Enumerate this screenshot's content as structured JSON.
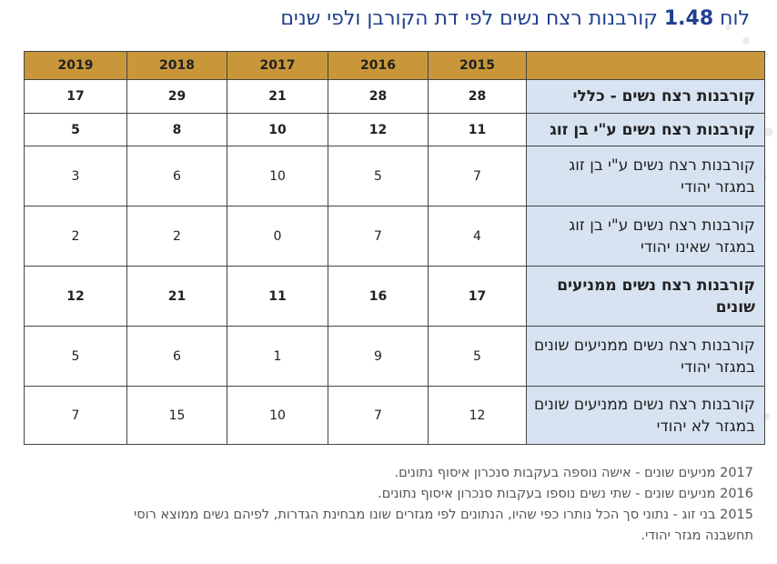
{
  "title": {
    "prefix": "לוח",
    "number": "1.48",
    "text": "קורבנות רצח נשים לפי דת הקורבן ולפי שנים"
  },
  "table": {
    "years": [
      "2015",
      "2016",
      "2017",
      "2018",
      "2019"
    ],
    "rows": [
      {
        "label": "קורבנות רצח נשים - כללי",
        "bold": true,
        "values": [
          "28",
          "28",
          "21",
          "29",
          "17"
        ]
      },
      {
        "label": "קורבנות רצח נשים ע\"י בן זוג",
        "bold": true,
        "values": [
          "11",
          "12",
          "10",
          "8",
          "5"
        ]
      },
      {
        "label": "קורבנות רצח נשים ע\"י בן זוג במגזר יהודי",
        "bold": false,
        "values": [
          "7",
          "5",
          "10",
          "6",
          "3"
        ]
      },
      {
        "label": "קורבנות רצח נשים ע\"י בן זוג במגזר שאינו יהודי",
        "bold": false,
        "values": [
          "4",
          "7",
          "0",
          "2",
          "2"
        ]
      },
      {
        "label": "קורבנות רצח נשים ממניעים שונים",
        "bold": true,
        "values": [
          "17",
          "16",
          "11",
          "21",
          "12"
        ]
      },
      {
        "label": "קורבנות רצח נשים ממניעים שונים במגזר יהודי",
        "bold": false,
        "values": [
          "5",
          "9",
          "1",
          "6",
          "5"
        ]
      },
      {
        "label": "קורבנות רצח נשים ממניעים שונים במגזר לא יהודי",
        "bold": false,
        "values": [
          "12",
          "7",
          "10",
          "15",
          "7"
        ]
      }
    ]
  },
  "notes": [
    "2017 מניעים שונים - אישה נוספה בעקבות סנכרון איסוף נתונים.",
    "2016 מניעים שונים - שתי נשים נוספו בעקבות סנכרון איסוף נתונים.",
    "2015 בני זוג - נתוני סך הכל נותרו כפי שהיו, הנתונים לפי מגזרים שונו מבחינת הגדרות, לפיהם נשים ממוצא רוסי",
    "תחשבנה מגזר יהודי."
  ]
}
